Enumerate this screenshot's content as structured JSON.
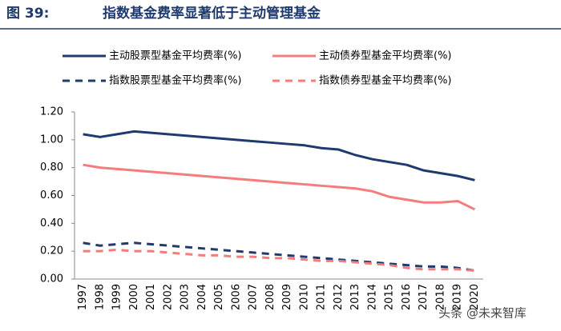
{
  "chart_data": {
    "type": "line",
    "figure_label": "图 39:",
    "title": "指数基金费率显著低于主动管理基金",
    "watermark": "头条 @未来智库",
    "categories": [
      "1997",
      "1998",
      "1999",
      "2000",
      "2001",
      "2002",
      "2003",
      "2004",
      "2005",
      "2006",
      "2007",
      "2008",
      "2009",
      "2010",
      "2011",
      "2012",
      "2013",
      "2014",
      "2015",
      "2016",
      "2017",
      "2018",
      "2019",
      "2020"
    ],
    "series": [
      {
        "name": "主动股票型基金平均费率(%)",
        "color": "#1f3a6e",
        "dashed": false,
        "values": [
          1.04,
          1.02,
          1.04,
          1.06,
          1.05,
          1.04,
          1.03,
          1.02,
          1.01,
          1.0,
          0.99,
          0.98,
          0.97,
          0.96,
          0.94,
          0.93,
          0.89,
          0.86,
          0.84,
          0.82,
          0.78,
          0.76,
          0.74,
          0.71
        ]
      },
      {
        "name": "主动债券型基金平均费率(%)",
        "color": "#f47c7c",
        "dashed": false,
        "values": [
          0.82,
          0.8,
          0.79,
          0.78,
          0.77,
          0.76,
          0.75,
          0.74,
          0.73,
          0.72,
          0.71,
          0.7,
          0.69,
          0.68,
          0.67,
          0.66,
          0.65,
          0.63,
          0.59,
          0.57,
          0.55,
          0.55,
          0.56,
          0.5
        ]
      },
      {
        "name": "指数股票型基金平均费率(%)",
        "color": "#1f3a6e",
        "dashed": true,
        "values": [
          0.26,
          0.24,
          0.25,
          0.26,
          0.25,
          0.24,
          0.23,
          0.22,
          0.21,
          0.2,
          0.19,
          0.18,
          0.17,
          0.16,
          0.15,
          0.14,
          0.13,
          0.12,
          0.11,
          0.1,
          0.09,
          0.09,
          0.08,
          0.06
        ]
      },
      {
        "name": "指数债券型基金平均费率(%)",
        "color": "#f47c7c",
        "dashed": true,
        "values": [
          0.2,
          0.2,
          0.21,
          0.2,
          0.2,
          0.19,
          0.18,
          0.17,
          0.17,
          0.16,
          0.16,
          0.15,
          0.15,
          0.14,
          0.13,
          0.13,
          0.12,
          0.11,
          0.1,
          0.08,
          0.07,
          0.07,
          0.07,
          0.06
        ]
      }
    ],
    "ylim": [
      0,
      1.2
    ],
    "yticks": [
      {
        "value": 0,
        "label": "0.00"
      },
      {
        "value": 0.2,
        "label": "0.20"
      },
      {
        "value": 0.4,
        "label": "0.40"
      },
      {
        "value": 0.6,
        "label": "0.60"
      },
      {
        "value": 0.8,
        "label": "0.80"
      },
      {
        "value": 1.0,
        "label": "1.00"
      },
      {
        "value": 1.2,
        "label": "1.20"
      }
    ],
    "grid": false
  }
}
